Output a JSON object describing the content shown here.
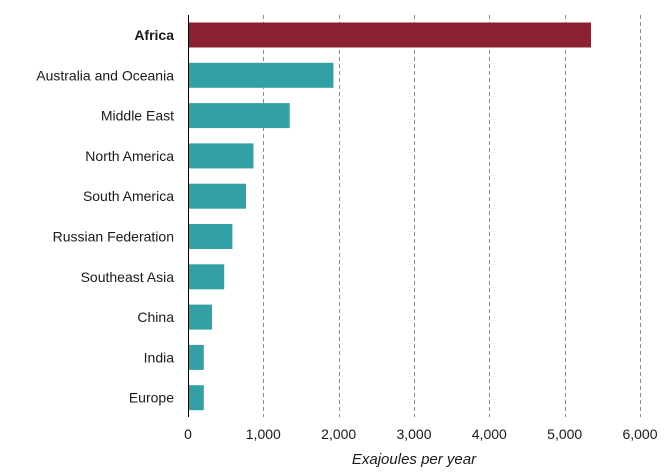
{
  "chart_data": {
    "type": "bar",
    "orientation": "horizontal",
    "categories": [
      "Africa",
      "Australia and Oceania",
      "Middle East",
      "North America",
      "South America",
      "Russian Federation",
      "Southeast Asia",
      "China",
      "India",
      "Europe"
    ],
    "values": [
      5350,
      1930,
      1350,
      870,
      770,
      590,
      480,
      320,
      210,
      210
    ],
    "highlight_category": "Africa",
    "xlabel": "Exajoules per year",
    "ylabel": "",
    "xlim": [
      0,
      6000
    ],
    "x_ticks": [
      0,
      1000,
      2000,
      3000,
      4000,
      5000,
      6000
    ],
    "x_tick_labels": [
      "0",
      "1,000",
      "2,000",
      "3,000",
      "4,000",
      "5,000",
      "6,000"
    ],
    "grid": "vertical dashed",
    "legend": "none",
    "colors": {
      "bar": "#33a0a5",
      "highlight_bar": "#8b2232",
      "grid": "#8c8c8c",
      "axis": "#000000"
    }
  }
}
